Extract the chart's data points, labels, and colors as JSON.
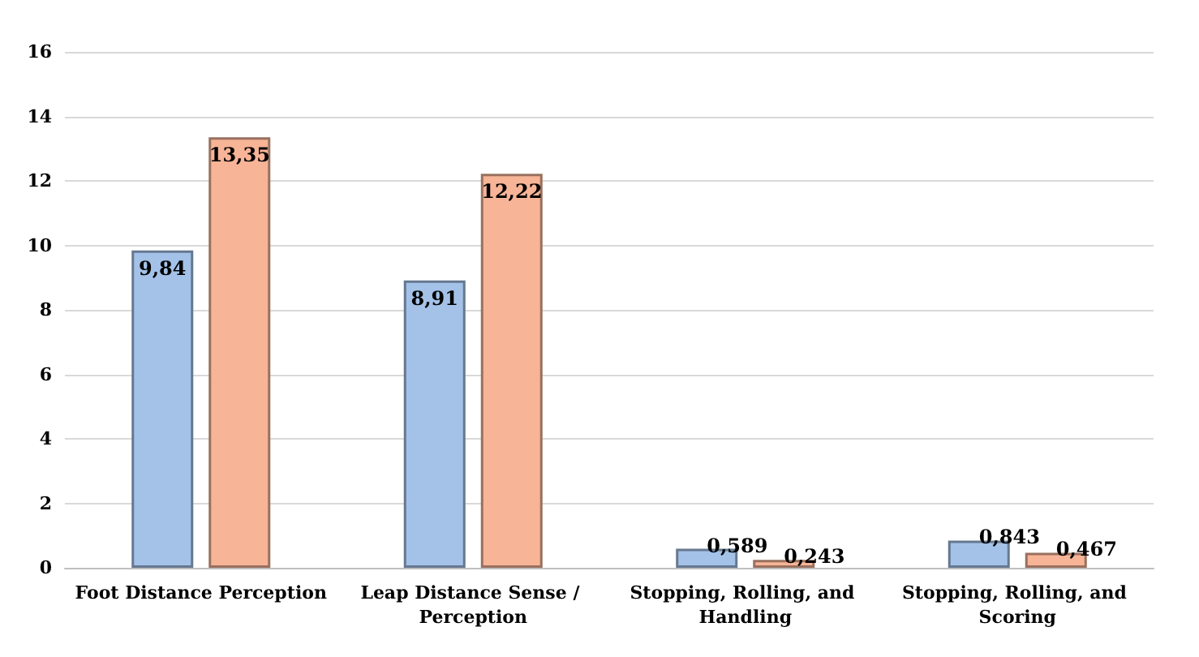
{
  "chart_data": {
    "type": "bar",
    "categories": [
      "Foot Distance Perception",
      "Leap Distance Sense / Perception",
      "Stopping, Rolling, and Handling",
      "Stopping, Rolling, and Scoring"
    ],
    "series": [
      {
        "color": "#a4c2e8",
        "values": [
          9.84,
          8.91,
          0.589,
          0.843
        ],
        "value_labels": [
          "9,84",
          "8,91",
          "0,589",
          "0,843"
        ]
      },
      {
        "color": "#f7b497",
        "values": [
          13.35,
          12.22,
          0.243,
          0.467
        ],
        "value_labels": [
          "13,35",
          "12,22",
          "0,243",
          "0,467"
        ]
      }
    ],
    "ylim": [
      0,
      16
    ],
    "yticks": [
      0,
      2,
      4,
      6,
      8,
      10,
      12,
      14,
      16
    ],
    "grid": "y"
  }
}
